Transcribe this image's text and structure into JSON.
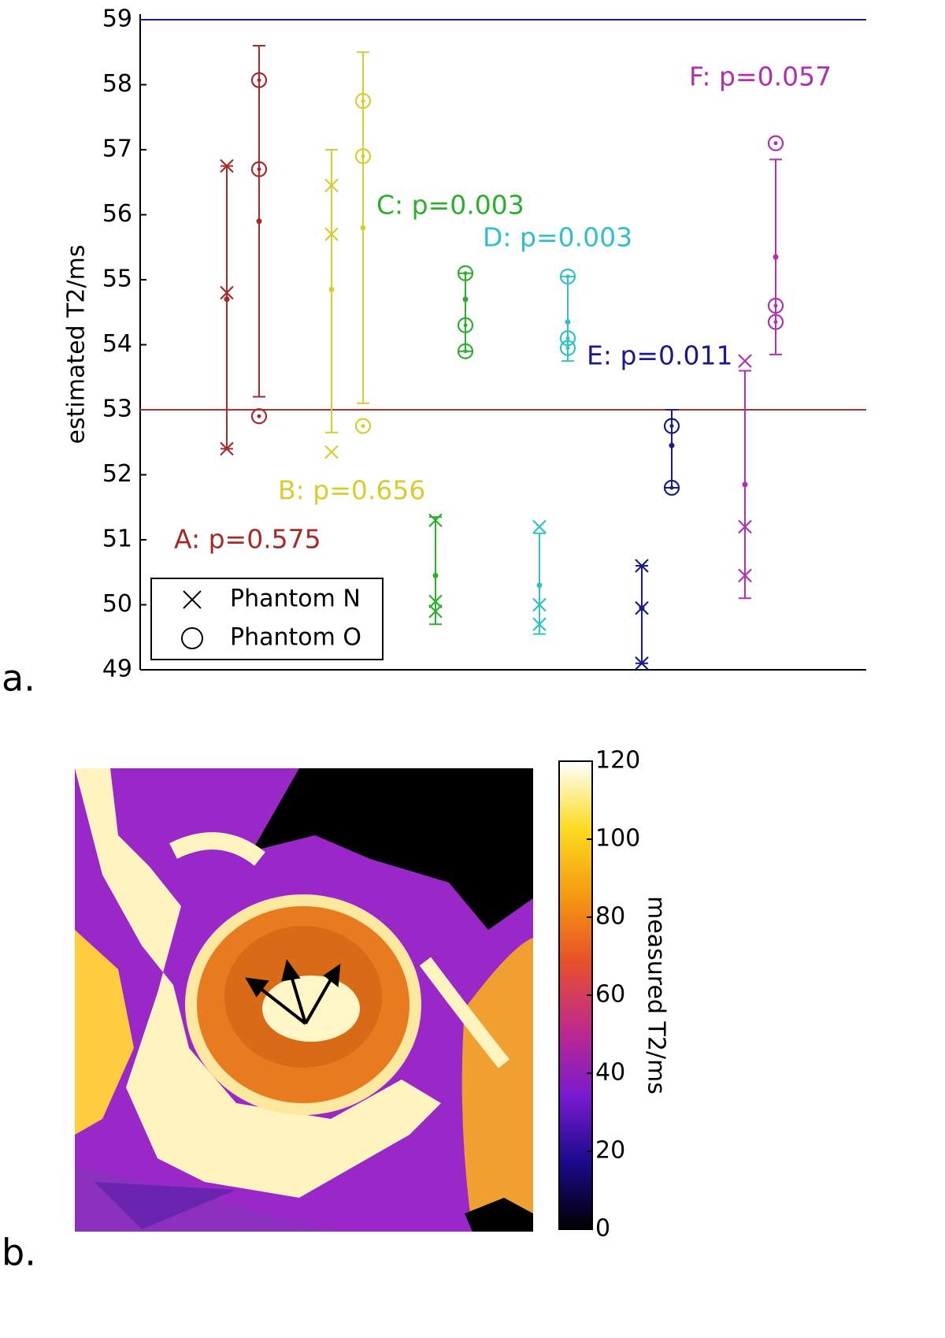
{
  "chart_data": [
    {
      "type": "errorbar",
      "panel_label": "a.",
      "y_label": "estimated T2/ms",
      "ylim": [
        49,
        59
      ],
      "yticks": [
        49,
        50,
        51,
        52,
        53,
        54,
        55,
        56,
        57,
        58,
        59
      ],
      "hlines": [
        {
          "value": 59,
          "color": "#1c1c8c"
        },
        {
          "value": 53,
          "color": "#b03030"
        }
      ],
      "groups": [
        {
          "annotation": "A: p=0.575",
          "color": "#a52a2a",
          "series": [
            {
              "marker": "x",
              "values": [
                56.75,
                54.8,
                52.4
              ],
              "mean": 54.7,
              "low": 52.4,
              "high": 56.75
            },
            {
              "marker": "o",
              "values": [
                58.07,
                56.7,
                52.9
              ],
              "mean": 55.9,
              "low": 53.2,
              "high": 58.6
            }
          ]
        },
        {
          "annotation": "B: p=0.656",
          "color": "#d8cc30",
          "series": [
            {
              "marker": "x",
              "values": [
                56.45,
                55.7,
                52.35
              ],
              "mean": 54.85,
              "low": 52.65,
              "high": 57.0
            },
            {
              "marker": "o",
              "values": [
                57.75,
                56.9,
                52.75
              ],
              "mean": 55.8,
              "low": 53.1,
              "high": 58.5
            }
          ]
        },
        {
          "annotation": "C: p=0.003",
          "color": "#2cb02c",
          "series": [
            {
              "marker": "x",
              "values": [
                51.3,
                50.05,
                49.9
              ],
              "mean": 50.45,
              "low": 49.7,
              "high": 51.35
            },
            {
              "marker": "o",
              "values": [
                55.1,
                54.3,
                53.9
              ],
              "mean": 54.7,
              "low": 53.9,
              "high": 55.1
            }
          ]
        },
        {
          "annotation": "D: p=0.003",
          "color": "#30c0c8",
          "series": [
            {
              "marker": "x",
              "values": [
                51.2,
                50.0,
                49.7
              ],
              "mean": 50.3,
              "low": 49.55,
              "high": 51.1
            },
            {
              "marker": "o",
              "values": [
                55.05,
                54.1,
                53.95
              ],
              "mean": 54.35,
              "low": 53.75,
              "high": 55.05
            }
          ]
        },
        {
          "annotation": "E: p=0.011",
          "color": "#1a1a8c",
          "series": [
            {
              "marker": "x",
              "values": [
                50.6,
                49.95,
                49.1
              ],
              "mean": 49.95,
              "low": 49.1,
              "high": 50.6
            },
            {
              "marker": "o",
              "values": [
                52.75,
                51.8
              ],
              "mean": 52.45,
              "low": 51.8,
              "high": 53.0
            }
          ]
        },
        {
          "annotation": "F: p=0.057",
          "color": "#b030b0",
          "series": [
            {
              "marker": "x",
              "values": [
                53.75,
                51.2,
                50.45
              ],
              "mean": 51.85,
              "low": 50.1,
              "high": 53.6
            },
            {
              "marker": "o",
              "values": [
                57.1,
                54.6,
                54.35
              ],
              "mean": 55.35,
              "low": 53.85,
              "high": 56.85
            }
          ]
        }
      ],
      "legend": {
        "entries": [
          "Phantom N",
          "Phantom O"
        ],
        "markers": [
          "x",
          "o"
        ],
        "position": "lower left"
      }
    },
    {
      "type": "image",
      "panel_label": "b.",
      "colorbar": {
        "label": "measured T2/ms",
        "ylim": [
          0,
          120
        ],
        "yticks": [
          0,
          20,
          40,
          60,
          80,
          100,
          120
        ],
        "colormap": [
          "#000000",
          "#1a0a8c",
          "#7a1ad0",
          "#c02a8a",
          "#e8502a",
          "#f59a10",
          "#fcdc20",
          "#ffffff"
        ]
      }
    }
  ]
}
